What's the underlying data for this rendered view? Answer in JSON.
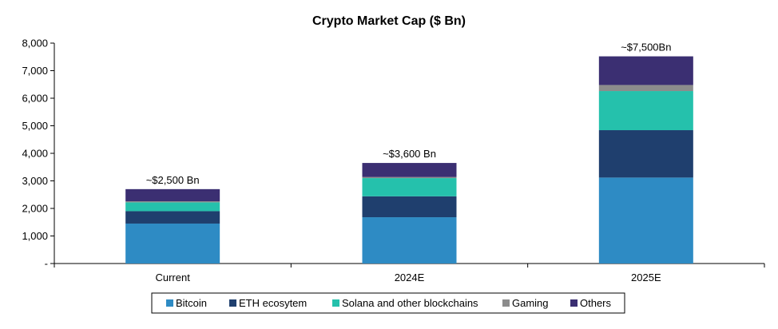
{
  "chart_data": {
    "type": "bar",
    "stacked": true,
    "title": "Crypto Market Cap ($ Bn)",
    "xlabel": "",
    "ylabel": "",
    "ylim": [
      0,
      8000
    ],
    "yticks": [
      0,
      1000,
      2000,
      3000,
      4000,
      5000,
      6000,
      7000,
      8000
    ],
    "ytick_labels": [
      "-",
      "1,000",
      "2,000",
      "3,000",
      "4,000",
      "5,000",
      "6,000",
      "7,000",
      "8,000"
    ],
    "categories": [
      "Current",
      "2024E",
      "2025E"
    ],
    "series": [
      {
        "name": "Bitcoin",
        "color": "#2E8BC4",
        "values": [
          1450,
          1680,
          3120
        ]
      },
      {
        "name": "ETH ecosytem",
        "color": "#1F3F6E",
        "values": [
          450,
          760,
          1720
        ]
      },
      {
        "name": "Solana and other blockchains",
        "color": "#25C1AC",
        "values": [
          320,
          660,
          1420
        ]
      },
      {
        "name": "Gaming",
        "color": "#8C8C8C",
        "values": [
          40,
          40,
          220
        ]
      },
      {
        "name": "Others",
        "color": "#3B2F72",
        "values": [
          440,
          510,
          1040
        ]
      }
    ],
    "annotations": [
      "~$2,500 Bn",
      "~$3,600 Bn",
      "~$7,500Bn"
    ],
    "grid": false,
    "legend": "bottom"
  }
}
